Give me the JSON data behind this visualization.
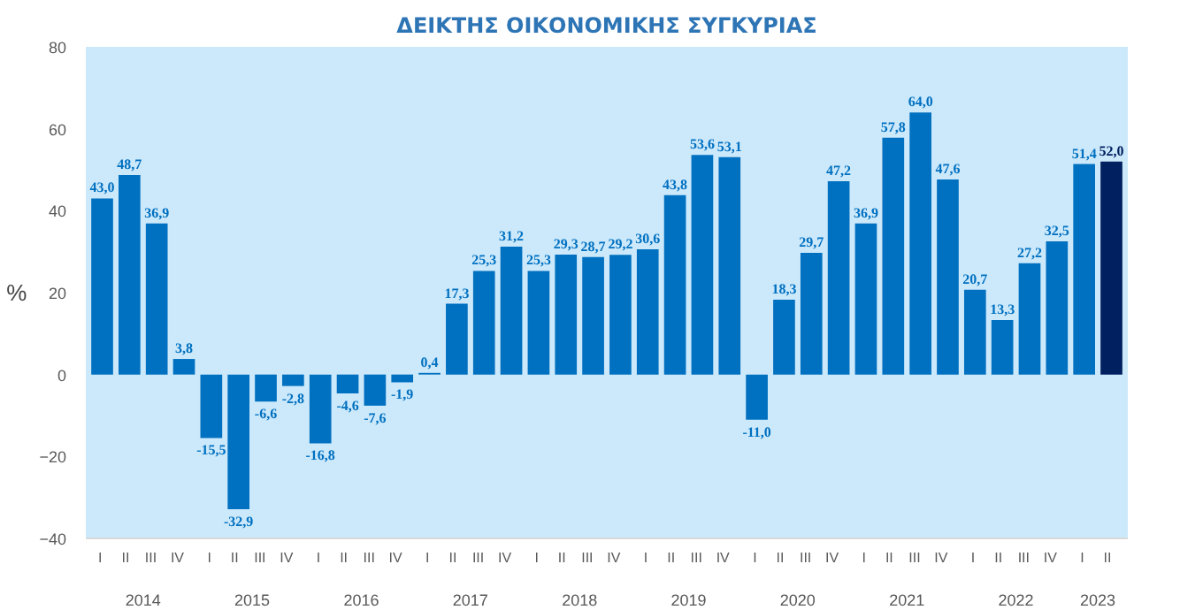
{
  "chart_data": {
    "type": "bar",
    "title": "ΔΕΙΚΤΗΣ ΟΙΚΟΝΟΜΙΚΗΣ ΣΥΓΚΥΡΙΑΣ",
    "ylabel": "%",
    "categories": [
      "I",
      "II",
      "III",
      "IV",
      "I",
      "II",
      "III",
      "IV",
      "I",
      "II",
      "III",
      "IV",
      "I",
      "II",
      "III",
      "IV",
      "I",
      "II",
      "III",
      "IV",
      "I",
      "II",
      "III",
      "IV",
      "I",
      "II",
      "III",
      "IV",
      "I",
      "II",
      "III",
      "IV",
      "I",
      "II",
      "III",
      "IV",
      "I",
      "II"
    ],
    "values": [
      43.0,
      48.7,
      36.9,
      3.8,
      -15.5,
      -32.9,
      -6.6,
      -2.8,
      -16.8,
      -4.6,
      -7.6,
      -1.9,
      0.4,
      17.3,
      25.3,
      31.2,
      25.3,
      29.3,
      28.7,
      29.2,
      30.6,
      43.8,
      53.6,
      53.1,
      -11.0,
      18.3,
      29.7,
      47.2,
      36.9,
      57.8,
      64.0,
      47.6,
      20.7,
      13.3,
      27.2,
      32.5,
      51.4,
      52.0
    ],
    "value_labels": [
      "43,0",
      "48,7",
      "36,9",
      "3,8",
      "-15,5",
      "-32,9",
      "-6,6",
      "-2,8",
      "-16,8",
      "-4,6",
      "-7,6",
      "-1,9",
      "0,4",
      "17,3",
      "25,3",
      "31,2",
      "25,3",
      "29,3",
      "28,7",
      "29,2",
      "30,6",
      "43,8",
      "53,6",
      "53,1",
      "-11,0",
      "18,3",
      "29,7",
      "47,2",
      "36,9",
      "57,8",
      "64,0",
      "47,6",
      "20,7",
      "13,3",
      "27,2",
      "32,5",
      "51,4",
      "52,0"
    ],
    "colors": [
      "#0070c0",
      "#0070c0",
      "#0070c0",
      "#0070c0",
      "#0070c0",
      "#0070c0",
      "#0070c0",
      "#0070c0",
      "#0070c0",
      "#0070c0",
      "#0070c0",
      "#0070c0",
      "#0070c0",
      "#0070c0",
      "#0070c0",
      "#0070c0",
      "#0070c0",
      "#0070c0",
      "#0070c0",
      "#0070c0",
      "#0070c0",
      "#0070c0",
      "#0070c0",
      "#0070c0",
      "#0070c0",
      "#0070c0",
      "#0070c0",
      "#0070c0",
      "#0070c0",
      "#0070c0",
      "#0070c0",
      "#0070c0",
      "#0070c0",
      "#0070c0",
      "#0070c0",
      "#0070c0",
      "#0070c0",
      "#002060"
    ],
    "annotations": [
      "2014",
      "2015",
      "2016",
      "2017",
      "2018",
      "2019",
      "2020",
      "2021",
      "2022",
      "2023"
    ],
    "ylim": [
      -40,
      80
    ],
    "yticks": [
      -40,
      -20,
      0,
      20,
      40,
      60,
      80
    ],
    "grid": false
  }
}
